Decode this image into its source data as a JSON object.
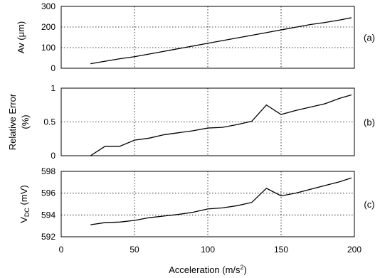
{
  "chart_data": [
    {
      "type": "line",
      "panel_label": "(a)",
      "ylabel": "Av (μm)",
      "xlim": [
        0,
        200
      ],
      "ylim": [
        0,
        300
      ],
      "yticks": [
        0,
        100,
        200,
        300
      ],
      "grid": true,
      "x": [
        20,
        30,
        40,
        50,
        60,
        70,
        80,
        90,
        100,
        110,
        120,
        130,
        140,
        150,
        160,
        170,
        180,
        190,
        198
      ],
      "series": [
        {
          "values": [
            22,
            34,
            46,
            56,
            69,
            82,
            95,
            108,
            121,
            134,
            147,
            160,
            173,
            186,
            199,
            212,
            222,
            234,
            245
          ]
        }
      ]
    },
    {
      "type": "line",
      "panel_label": "(b)",
      "ylabel": "Relative Error",
      "ylabel_line2": "(%)",
      "xlim": [
        0,
        200
      ],
      "ylim": [
        0,
        1
      ],
      "yticks": [
        0,
        0.5,
        1
      ],
      "grid": true,
      "x": [
        20,
        30,
        40,
        50,
        60,
        70,
        80,
        90,
        100,
        110,
        120,
        130,
        140,
        150,
        160,
        170,
        180,
        190,
        198
      ],
      "series": [
        {
          "values": [
            0.0,
            0.14,
            0.14,
            0.23,
            0.26,
            0.31,
            0.34,
            0.37,
            0.41,
            0.42,
            0.46,
            0.51,
            0.75,
            0.61,
            0.67,
            0.72,
            0.77,
            0.85,
            0.9
          ]
        }
      ]
    },
    {
      "type": "line",
      "panel_label": "(c)",
      "ylabel_main": "V",
      "ylabel_sub": "DC",
      "ylabel_rest": " (mV)",
      "xlabel": "Acceleration (m/s",
      "xlabel_sup": "2",
      "xlabel_end": ")",
      "xlim": [
        0,
        200
      ],
      "xticks": [
        0,
        50,
        100,
        150,
        200
      ],
      "ylim": [
        592,
        598
      ],
      "yticks": [
        592,
        594,
        596,
        598
      ],
      "grid": true,
      "x": [
        20,
        30,
        40,
        50,
        60,
        70,
        80,
        90,
        100,
        110,
        120,
        130,
        140,
        150,
        160,
        170,
        180,
        190,
        198
      ],
      "series": [
        {
          "values": [
            593.1,
            593.3,
            593.35,
            593.5,
            593.75,
            593.9,
            594.05,
            594.25,
            594.55,
            594.65,
            594.85,
            595.15,
            596.45,
            595.75,
            596.0,
            596.35,
            596.7,
            597.05,
            597.4
          ]
        }
      ]
    }
  ]
}
